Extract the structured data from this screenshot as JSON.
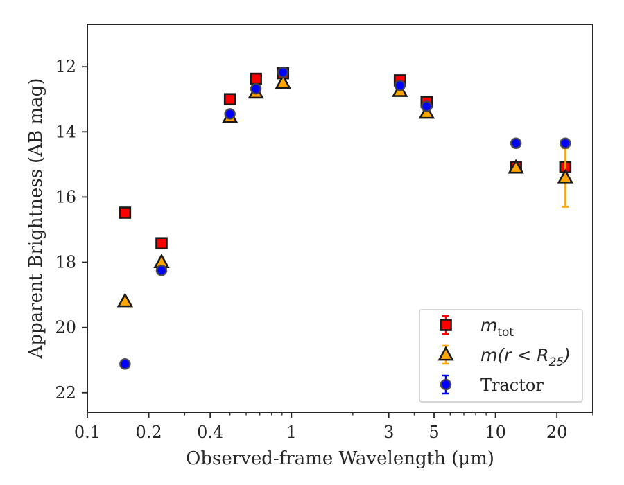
{
  "chart_data": {
    "type": "scatter",
    "xlabel": "Observed-frame Wavelength (μm)",
    "ylabel": "Apparent Brightness (AB mag)",
    "xscale": "log",
    "xlim": [
      0.1,
      30
    ],
    "ylim": [
      22.6,
      10.7
    ],
    "y_inverted": true,
    "grid": false,
    "legend_placement": "lower-right",
    "x_ticks": [
      {
        "value": 0.1,
        "label": "0.1"
      },
      {
        "value": 0.2,
        "label": "0.2"
      },
      {
        "value": 0.4,
        "label": "0.4"
      },
      {
        "value": 1,
        "label": "1"
      },
      {
        "value": 3,
        "label": "3"
      },
      {
        "value": 5,
        "label": "5"
      },
      {
        "value": 10,
        "label": "10"
      },
      {
        "value": 20,
        "label": "20"
      }
    ],
    "x_minor_ticks": [
      0.3,
      0.5,
      0.6,
      0.7,
      0.8,
      0.9,
      2,
      4,
      6,
      7,
      8,
      9,
      30
    ],
    "y_ticks": [
      {
        "value": 12,
        "label": "12"
      },
      {
        "value": 14,
        "label": "14"
      },
      {
        "value": 16,
        "label": "16"
      },
      {
        "value": 18,
        "label": "18"
      },
      {
        "value": 20,
        "label": "20"
      },
      {
        "value": 22,
        "label": "22"
      }
    ],
    "series": [
      {
        "name": "m_tot",
        "legend": {
          "base": "m",
          "sub": "tot",
          "suffix": ""
        },
        "marker": "square",
        "color": "#ff0000",
        "edge": "#1a1a1a",
        "points": [
          {
            "x": 0.153,
            "y": 16.48,
            "err": 0.05
          },
          {
            "x": 0.231,
            "y": 17.42,
            "err": 0.05
          },
          {
            "x": 0.5,
            "y": 13.0,
            "err": 0.03
          },
          {
            "x": 0.67,
            "y": 12.37,
            "err": 0.03
          },
          {
            "x": 0.91,
            "y": 12.2,
            "err": 0.03
          },
          {
            "x": 3.4,
            "y": 12.42,
            "err": 0.03
          },
          {
            "x": 4.6,
            "y": 13.08,
            "err": 0.03
          },
          {
            "x": 12.6,
            "y": 15.08,
            "err": 0.05
          },
          {
            "x": 22.0,
            "y": 15.08,
            "err": 0.05
          }
        ]
      },
      {
        "name": "m(r < R_25)",
        "legend": {
          "base": "m(r < R",
          "sub": "25",
          "suffix": ")"
        },
        "marker": "triangle",
        "color": "#ffa500",
        "edge": "#1a1a1a",
        "points": [
          {
            "x": 0.153,
            "y": 19.2,
            "err": 0.05
          },
          {
            "x": 0.231,
            "y": 18.0,
            "err": 0.05
          },
          {
            "x": 0.5,
            "y": 13.55,
            "err": 0.03
          },
          {
            "x": 0.67,
            "y": 12.8,
            "err": 0.03
          },
          {
            "x": 0.91,
            "y": 12.5,
            "err": 0.03
          },
          {
            "x": 3.4,
            "y": 12.75,
            "err": 0.03
          },
          {
            "x": 4.6,
            "y": 13.42,
            "err": 0.03
          },
          {
            "x": 12.6,
            "y": 15.1,
            "err": 0.05
          },
          {
            "x": 22.0,
            "y": 15.4,
            "err": 0.9
          }
        ]
      },
      {
        "name": "Tractor",
        "legend": {
          "base": "Tractor",
          "sub": "",
          "suffix": ""
        },
        "marker": "circle",
        "color": "#0000ff",
        "edge": "#444444",
        "points": [
          {
            "x": 0.153,
            "y": 21.12,
            "err": 0.05
          },
          {
            "x": 0.231,
            "y": 18.25,
            "err": 0.05
          },
          {
            "x": 0.5,
            "y": 13.45,
            "err": 0.03
          },
          {
            "x": 0.67,
            "y": 12.68,
            "err": 0.03
          },
          {
            "x": 0.91,
            "y": 12.17,
            "err": 0.03
          },
          {
            "x": 3.4,
            "y": 12.58,
            "err": 0.03
          },
          {
            "x": 4.6,
            "y": 13.22,
            "err": 0.03
          },
          {
            "x": 12.6,
            "y": 14.35,
            "err": 0.05
          },
          {
            "x": 22.0,
            "y": 14.35,
            "err": 0.05
          }
        ]
      }
    ]
  }
}
